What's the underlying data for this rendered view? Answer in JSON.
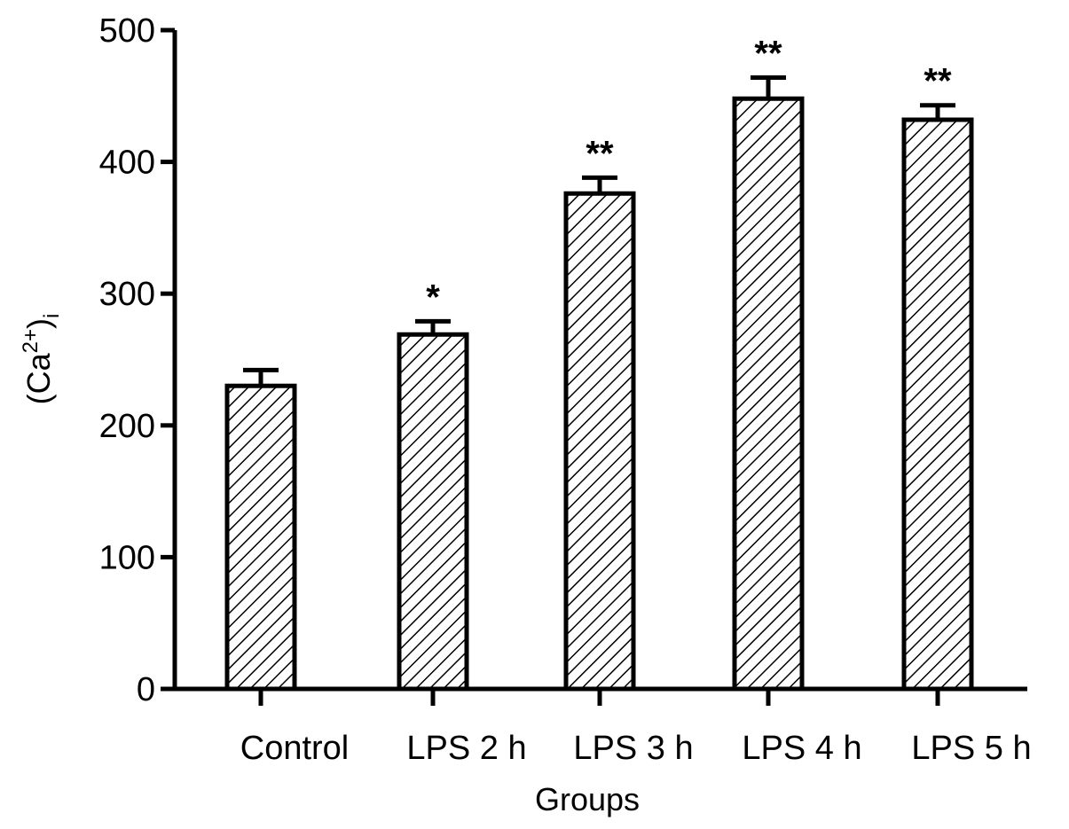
{
  "chart_data": {
    "type": "bar",
    "title": "",
    "xlabel": "Groups",
    "ylabel": {
      "base": "(Ca",
      "sup": "2+",
      "close": ")",
      "sub": "i"
    },
    "ylim": [
      0,
      500
    ],
    "yticks": [
      0,
      100,
      200,
      300,
      400,
      500
    ],
    "categories": [
      "Control",
      "LPS 2 h",
      "LPS 3 h",
      "LPS 4 h",
      "LPS 5 h"
    ],
    "values": [
      230,
      269,
      376,
      448,
      432
    ],
    "errors": [
      12,
      10,
      12,
      16,
      11
    ],
    "significance": [
      "",
      "*",
      "**",
      "**",
      "**"
    ],
    "grid": false,
    "legend": "none",
    "bar_fill": "diagonal-hatch",
    "colors": {
      "bar_stroke": "#000000",
      "hatch": "#000000",
      "background": "#ffffff"
    }
  }
}
